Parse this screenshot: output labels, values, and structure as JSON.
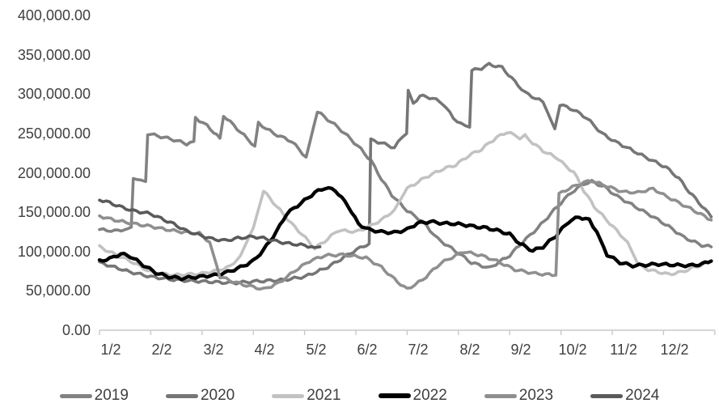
{
  "chart_data": {
    "type": "line",
    "title": "",
    "xlabel": "",
    "ylabel": "",
    "grid": false,
    "legend_position": "bottom",
    "y_axis": {
      "min": 0,
      "max": 400000,
      "step": 50000,
      "number_format": "#,##0.00"
    },
    "y_tick_labels_top_down": [
      "400,000.00",
      "350,000.00",
      "300,000.00",
      "250,000.00",
      "200,000.00",
      "150,000.00",
      "100,000.00",
      "50,000.00",
      "0.00"
    ],
    "x_tick_labels": [
      "1/2",
      "2/2",
      "3/2",
      "4/2",
      "5/2",
      "6/2",
      "7/2",
      "8/2",
      "9/2",
      "10/2",
      "11/2",
      "12/2"
    ],
    "x_unit": "month/day of year, daily seasonal series",
    "axis_color": "#c9c9c9",
    "series": [
      {
        "name": "2019",
        "color": "#828282",
        "width": 3.6,
        "points": [
          [
            0,
            128000
          ],
          [
            0.3,
            126000
          ],
          [
            0.55,
            129000
          ],
          [
            0.62,
            131000
          ],
          [
            0.66,
            194000
          ],
          [
            0.8,
            191000
          ],
          [
            0.9,
            189000
          ],
          [
            0.94,
            250000
          ],
          [
            1.2,
            246000
          ],
          [
            1.45,
            242000
          ],
          [
            1.7,
            237000
          ],
          [
            1.84,
            240000
          ],
          [
            1.87,
            270000
          ],
          [
            2.1,
            260000
          ],
          [
            2.35,
            244000
          ],
          [
            2.42,
            273000
          ],
          [
            2.75,
            252000
          ],
          [
            3.03,
            234000
          ],
          [
            3.1,
            263000
          ],
          [
            3.4,
            250000
          ],
          [
            3.75,
            240000
          ],
          [
            4.03,
            220000
          ],
          [
            4.25,
            278000
          ],
          [
            4.45,
            268000
          ],
          [
            4.65,
            258000
          ],
          [
            4.9,
            243000
          ],
          [
            5.1,
            230000
          ],
          [
            5.3,
            215000
          ],
          [
            5.5,
            192000
          ],
          [
            5.7,
            172000
          ],
          [
            6.0,
            152000
          ],
          [
            6.3,
            138000
          ],
          [
            6.6,
            116000
          ],
          [
            7.0,
            98000
          ],
          [
            7.25,
            86000
          ],
          [
            7.6,
            79000
          ],
          [
            8.0,
            95000
          ],
          [
            8.25,
            112000
          ],
          [
            8.55,
            130000
          ],
          [
            8.8,
            148000
          ],
          [
            9.0,
            162000
          ],
          [
            9.2,
            175000
          ],
          [
            9.45,
            186000
          ],
          [
            9.6,
            189000
          ],
          [
            9.85,
            182000
          ],
          [
            10.1,
            170000
          ],
          [
            10.45,
            157000
          ],
          [
            10.75,
            146000
          ],
          [
            11.1,
            132000
          ],
          [
            11.4,
            118000
          ],
          [
            11.75,
            108000
          ],
          [
            11.93,
            106000
          ]
        ]
      },
      {
        "name": "2020",
        "color": "#767676",
        "width": 3.6,
        "points": [
          [
            0,
            86000
          ],
          [
            0.3,
            80000
          ],
          [
            0.6,
            74000
          ],
          [
            1.0,
            68000
          ],
          [
            1.45,
            64000
          ],
          [
            2.0,
            62000
          ],
          [
            2.6,
            60000
          ],
          [
            3.0,
            62000
          ],
          [
            3.6,
            64000
          ],
          [
            4.0,
            68000
          ],
          [
            4.45,
            80000
          ],
          [
            4.7,
            90000
          ],
          [
            4.95,
            100000
          ],
          [
            5.15,
            107000
          ],
          [
            5.26,
            110000
          ],
          [
            5.29,
            242000
          ],
          [
            5.5,
            238000
          ],
          [
            5.75,
            232000
          ],
          [
            5.9,
            245000
          ],
          [
            5.99,
            250000
          ],
          [
            6.02,
            305000
          ],
          [
            6.12,
            288000
          ],
          [
            6.25,
            298000
          ],
          [
            6.5,
            295000
          ],
          [
            6.7,
            288000
          ],
          [
            6.9,
            270000
          ],
          [
            7.05,
            262000
          ],
          [
            7.22,
            258000
          ],
          [
            7.26,
            330000
          ],
          [
            7.45,
            333000
          ],
          [
            7.6,
            338000
          ],
          [
            7.85,
            334000
          ],
          [
            8.1,
            316000
          ],
          [
            8.3,
            302000
          ],
          [
            8.5,
            295000
          ],
          [
            8.65,
            290000
          ],
          [
            8.88,
            256000
          ],
          [
            8.98,
            287000
          ],
          [
            9.25,
            280000
          ],
          [
            9.5,
            270000
          ],
          [
            9.8,
            250000
          ],
          [
            10.05,
            240000
          ],
          [
            10.35,
            230000
          ],
          [
            10.65,
            220000
          ],
          [
            11.05,
            207000
          ],
          [
            11.3,
            193000
          ],
          [
            11.5,
            176000
          ],
          [
            11.75,
            158000
          ],
          [
            11.93,
            144000
          ]
        ]
      },
      {
        "name": "2021",
        "color": "#c2c2c2",
        "width": 3.6,
        "points": [
          [
            0,
            106000
          ],
          [
            0.25,
            98000
          ],
          [
            0.6,
            88000
          ],
          [
            1.0,
            74000
          ],
          [
            1.45,
            70000
          ],
          [
            2.0,
            72000
          ],
          [
            2.3,
            76000
          ],
          [
            2.55,
            81000
          ],
          [
            2.75,
            95000
          ],
          [
            3.0,
            130000
          ],
          [
            3.2,
            177000
          ],
          [
            3.45,
            158000
          ],
          [
            3.75,
            135000
          ],
          [
            3.95,
            122000
          ],
          [
            4.2,
            104000
          ],
          [
            4.45,
            116000
          ],
          [
            4.65,
            127000
          ],
          [
            5.0,
            125000
          ],
          [
            5.2,
            130000
          ],
          [
            5.5,
            140000
          ],
          [
            5.75,
            153000
          ],
          [
            6.0,
            180000
          ],
          [
            6.35,
            194000
          ],
          [
            6.7,
            205000
          ],
          [
            6.95,
            210000
          ],
          [
            7.2,
            222000
          ],
          [
            7.45,
            230000
          ],
          [
            7.6,
            238000
          ],
          [
            7.75,
            245000
          ],
          [
            7.95,
            252000
          ],
          [
            8.1,
            248000
          ],
          [
            8.2,
            243000
          ],
          [
            8.3,
            247000
          ],
          [
            8.45,
            238000
          ],
          [
            8.65,
            228000
          ],
          [
            8.95,
            218000
          ],
          [
            9.1,
            208000
          ],
          [
            9.25,
            201000
          ],
          [
            9.45,
            177000
          ],
          [
            9.65,
            157000
          ],
          [
            9.95,
            136000
          ],
          [
            10.3,
            112000
          ],
          [
            10.5,
            84000
          ],
          [
            10.7,
            77000
          ],
          [
            11.1,
            71000
          ],
          [
            11.35,
            74000
          ],
          [
            11.6,
            80000
          ],
          [
            11.93,
            87000
          ]
        ]
      },
      {
        "name": "2022",
        "color": "#000000",
        "width": 4.3,
        "points": [
          [
            0,
            88000
          ],
          [
            0.2,
            91000
          ],
          [
            0.42,
            97000
          ],
          [
            0.6,
            94000
          ],
          [
            0.85,
            83000
          ],
          [
            1.1,
            73000
          ],
          [
            1.35,
            68000
          ],
          [
            1.6,
            66000
          ],
          [
            1.95,
            68000
          ],
          [
            2.25,
            70000
          ],
          [
            2.5,
            74000
          ],
          [
            2.75,
            80000
          ],
          [
            3.0,
            88000
          ],
          [
            3.2,
            102000
          ],
          [
            3.45,
            125000
          ],
          [
            3.65,
            148000
          ],
          [
            4.0,
            165000
          ],
          [
            4.2,
            175000
          ],
          [
            4.4,
            181000
          ],
          [
            4.6,
            178000
          ],
          [
            4.85,
            158000
          ],
          [
            5.05,
            135000
          ],
          [
            5.25,
            128000
          ],
          [
            5.5,
            125000
          ],
          [
            5.75,
            124000
          ],
          [
            6.0,
            128000
          ],
          [
            6.2,
            136000
          ],
          [
            6.45,
            138000
          ],
          [
            6.7,
            136000
          ],
          [
            7.0,
            135000
          ],
          [
            7.3,
            132000
          ],
          [
            7.55,
            130000
          ],
          [
            7.75,
            127000
          ],
          [
            8.0,
            122000
          ],
          [
            8.2,
            110000
          ],
          [
            8.45,
            101000
          ],
          [
            8.65,
            106000
          ],
          [
            8.9,
            120000
          ],
          [
            9.15,
            138000
          ],
          [
            9.35,
            144000
          ],
          [
            9.55,
            140000
          ],
          [
            9.7,
            125000
          ],
          [
            9.9,
            96000
          ],
          [
            10.15,
            86000
          ],
          [
            10.4,
            82000
          ],
          [
            10.65,
            83000
          ],
          [
            10.9,
            84000
          ],
          [
            11.2,
            83000
          ],
          [
            11.5,
            82000
          ],
          [
            11.75,
            84000
          ],
          [
            11.93,
            88000
          ]
        ]
      },
      {
        "name": "2023",
        "color": "#8f8f8f",
        "width": 3.6,
        "points": [
          [
            0,
            145000
          ],
          [
            0.3,
            140000
          ],
          [
            0.6,
            136000
          ],
          [
            1.0,
            132000
          ],
          [
            1.3,
            128000
          ],
          [
            1.6,
            125000
          ],
          [
            1.95,
            123000
          ],
          [
            2.15,
            112000
          ],
          [
            2.35,
            68000
          ],
          [
            2.6,
            62000
          ],
          [
            2.8,
            58000
          ],
          [
            3.2,
            52000
          ],
          [
            3.5,
            60000
          ],
          [
            3.8,
            75000
          ],
          [
            4.1,
            88000
          ],
          [
            4.4,
            95000
          ],
          [
            4.75,
            96000
          ],
          [
            5.2,
            92000
          ],
          [
            5.5,
            80000
          ],
          [
            5.75,
            65000
          ],
          [
            6.0,
            52000
          ],
          [
            6.3,
            64000
          ],
          [
            6.65,
            85000
          ],
          [
            7.1,
            100000
          ],
          [
            7.45,
            95000
          ],
          [
            7.75,
            88000
          ],
          [
            8.1,
            77000
          ],
          [
            8.5,
            72000
          ],
          [
            8.9,
            70000
          ],
          [
            8.96,
            173000
          ],
          [
            9.15,
            180000
          ],
          [
            9.45,
            188000
          ],
          [
            9.6,
            190000
          ],
          [
            9.9,
            183000
          ],
          [
            10.2,
            176000
          ],
          [
            10.5,
            175000
          ],
          [
            10.8,
            180000
          ],
          [
            11.0,
            172000
          ],
          [
            11.3,
            162000
          ],
          [
            11.6,
            152000
          ],
          [
            11.93,
            140000
          ]
        ]
      },
      {
        "name": "2024",
        "color": "#5a5a5a",
        "width": 3.6,
        "points": [
          [
            0,
            166000
          ],
          [
            0.2,
            162000
          ],
          [
            0.45,
            156000
          ],
          [
            0.65,
            152000
          ],
          [
            1.0,
            148000
          ],
          [
            1.2,
            142000
          ],
          [
            1.45,
            135000
          ],
          [
            1.7,
            126000
          ],
          [
            2.0,
            120000
          ],
          [
            2.2,
            116000
          ],
          [
            2.45,
            114000
          ],
          [
            2.7,
            117000
          ],
          [
            3.0,
            119000
          ],
          [
            3.2,
            117000
          ],
          [
            3.45,
            113000
          ],
          [
            3.7,
            110000
          ],
          [
            4.0,
            108000
          ],
          [
            4.2,
            105000
          ],
          [
            4.3,
            106000
          ]
        ]
      }
    ]
  }
}
